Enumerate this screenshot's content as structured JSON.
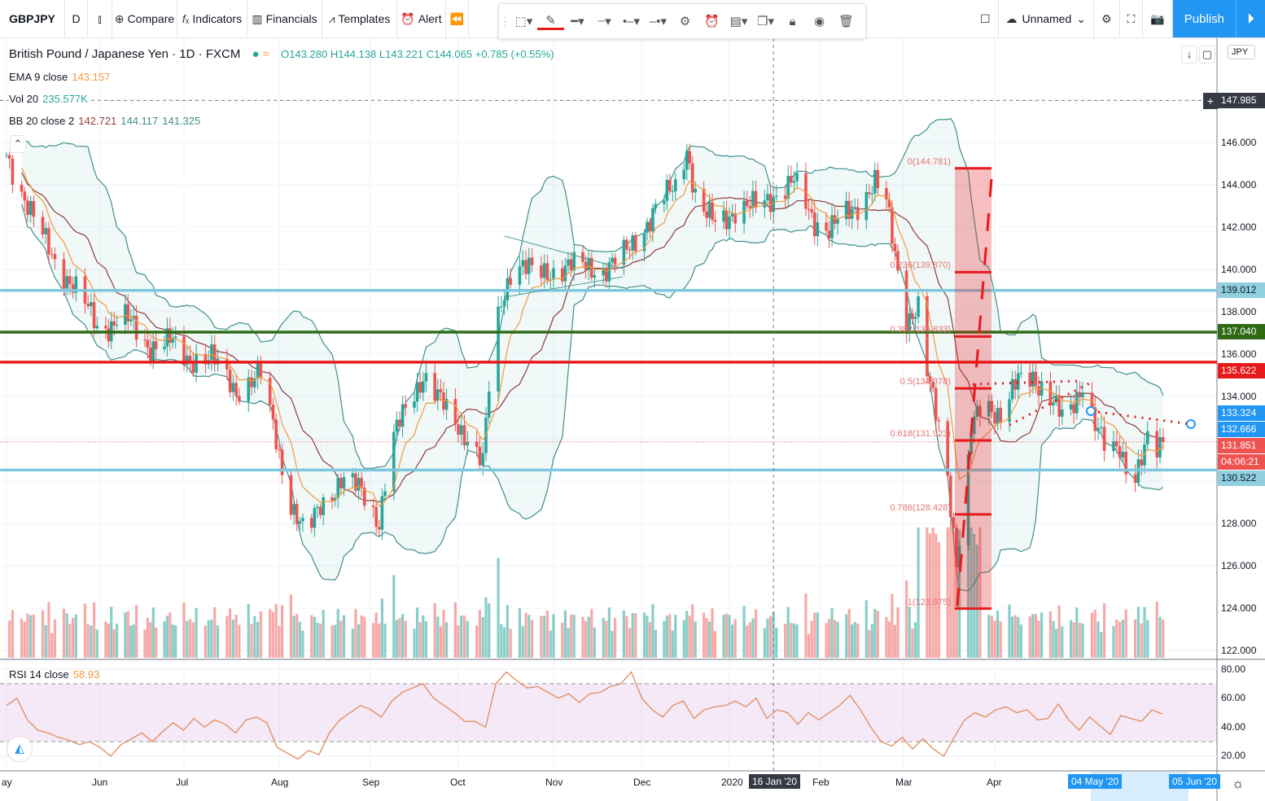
{
  "toolbar": {
    "symbol": "GBPJPY",
    "interval": "D",
    "chart_type_icon": "candles-icon",
    "compare": "Compare",
    "indicators": "Indicators",
    "financials": "Financials",
    "templates": "Templates",
    "alert": "Alert",
    "layout_name": "Unnamed",
    "publish": "Publish"
  },
  "legend": {
    "title": "British Pound / Japanese Yen · 1D · FXCM",
    "open": "O143.280",
    "high": "H144.138",
    "low": "L143.221",
    "close": "C144.065",
    "change": "+0.785 (+0.55%)",
    "ema": {
      "label": "EMA 9 close",
      "value": "143.157"
    },
    "vol": {
      "label": "Vol 20",
      "value": "235.577K"
    },
    "bb": {
      "label": "BB 20 close 2",
      "basis": "142.721",
      "upper": "144.117",
      "lower": "141.325"
    },
    "rsi": {
      "label": "RSI 14 close",
      "value": "58.93"
    }
  },
  "price_axis": {
    "currency": "JPY",
    "ticks": [
      "146.000",
      "144.000",
      "142.000",
      "140.000",
      "138.000",
      "136.000",
      "134.000",
      "128.000",
      "126.000",
      "124.000",
      "122.000"
    ],
    "labels": [
      {
        "text": "147.985",
        "bg": "#363a45",
        "fg": "#ffffff",
        "price": 147.985
      },
      {
        "text": "139.012",
        "bg": "#8fcfe0",
        "fg": "#131722",
        "price": 139.012
      },
      {
        "text": "137.040",
        "bg": "#2e6b14",
        "fg": "#ffffff",
        "price": 137.04
      },
      {
        "text": "135.622",
        "bg": "#e8191b",
        "fg": "#ffffff",
        "price": 135.622
      },
      {
        "text": "133.324",
        "bg": "#2196f3",
        "fg": "#ffffff",
        "price": 133.324
      },
      {
        "text": "132.666",
        "bg": "#2196f3",
        "fg": "#ffffff",
        "price": 132.666
      },
      {
        "text": "131.851",
        "bg": "#ef5350",
        "fg": "#ffffff",
        "price": 131.851
      },
      {
        "text": "04:06:21",
        "bg": "#ef5350",
        "fg": "#ffffff",
        "price": 131.05
      },
      {
        "text": "130.522",
        "bg": "#8fcfe0",
        "fg": "#131722",
        "price": 130.522
      }
    ]
  },
  "rsi_axis": {
    "ticks": [
      "80.00",
      "60.00",
      "40.00",
      "20.00"
    ],
    "upper_band": 70,
    "lower_band": 30
  },
  "time_axis": {
    "labels": [
      {
        "text": "ay",
        "date": "2019-05-01"
      },
      {
        "text": "Jun",
        "date": "2019-06-01"
      },
      {
        "text": "Jul",
        "date": "2019-07-01"
      },
      {
        "text": "Aug",
        "date": "2019-08-01"
      },
      {
        "text": "Sep",
        "date": "2019-09-01"
      },
      {
        "text": "Oct",
        "date": "2019-10-01"
      },
      {
        "text": "Nov",
        "date": "2019-11-01"
      },
      {
        "text": "Dec",
        "date": "2019-12-01"
      },
      {
        "text": "2020",
        "date": "2020-01-01"
      },
      {
        "text": "Feb",
        "date": "2020-02-01"
      },
      {
        "text": "Mar",
        "date": "2020-03-01"
      },
      {
        "text": "Apr",
        "date": "2020-04-01"
      }
    ],
    "crosshair_label": "16 Jan '20",
    "range_start_label": "04 May '20",
    "range_end_label": "05 Jun '20"
  },
  "horizontal_lines": [
    {
      "price": 139.012,
      "color": "#7ec8dd"
    },
    {
      "price": 137.04,
      "color": "#2e6b14"
    },
    {
      "price": 135.622,
      "color": "#e8191b"
    },
    {
      "price": 130.522,
      "color": "#7ec8dd"
    }
  ],
  "fibonacci": {
    "color": "#e8191b",
    "levels": [
      {
        "text": "0(144.781)",
        "price": 144.781
      },
      {
        "text": "0.236(139.870)",
        "price": 139.87
      },
      {
        "text": "0.382(136.833)",
        "price": 136.833
      },
      {
        "text": "0.5(134.378)",
        "price": 134.378
      },
      {
        "text": "0.618(131.923)",
        "price": 131.923
      },
      {
        "text": "0.786(128.428)",
        "price": 128.428
      },
      {
        "text": "1(123.975)",
        "price": 123.975
      }
    ]
  },
  "chart_data": {
    "type": "candlestick",
    "symbol": "GBPJPY",
    "ylim": [
      122,
      148
    ],
    "approx_closes": [
      [
        "2019-05-01",
        145.4
      ],
      [
        "2019-05-09",
        142.7
      ],
      [
        "2019-05-17",
        140.4
      ],
      [
        "2019-05-25",
        138.9
      ],
      [
        "2019-06-01",
        137.0
      ],
      [
        "2019-06-09",
        137.9
      ],
      [
        "2019-06-18",
        136.4
      ],
      [
        "2019-06-26",
        136.6
      ],
      [
        "2019-07-02",
        135.8
      ],
      [
        "2019-07-10",
        135.8
      ],
      [
        "2019-07-18",
        134.3
      ],
      [
        "2019-07-26",
        135.0
      ],
      [
        "2019-07-31",
        132.0
      ],
      [
        "2019-08-04",
        129.3
      ],
      [
        "2019-08-10",
        127.3
      ],
      [
        "2019-08-15",
        128.9
      ],
      [
        "2019-08-22",
        130.0
      ],
      [
        "2019-08-29",
        129.6
      ],
      [
        "2019-09-04",
        128.1
      ],
      [
        "2019-09-08",
        131.6
      ],
      [
        "2019-09-13",
        133.5
      ],
      [
        "2019-09-19",
        135.0
      ],
      [
        "2019-09-24",
        133.9
      ],
      [
        "2019-10-03",
        132.3
      ],
      [
        "2019-10-09",
        130.8
      ],
      [
        "2019-10-12",
        136.2
      ],
      [
        "2019-10-15",
        138.5
      ],
      [
        "2019-10-19",
        140.4
      ],
      [
        "2019-10-27",
        139.7
      ],
      [
        "2019-11-06",
        140.2
      ],
      [
        "2019-11-18",
        140.0
      ],
      [
        "2019-11-26",
        140.8
      ],
      [
        "2019-12-02",
        142.0
      ],
      [
        "2019-12-07",
        143.1
      ],
      [
        "2019-12-13",
        143.9
      ],
      [
        "2019-12-17",
        145.8
      ],
      [
        "2019-12-21",
        142.7
      ],
      [
        "2019-12-27",
        142.3
      ],
      [
        "2020-01-02",
        142.7
      ],
      [
        "2020-01-08",
        142.9
      ],
      [
        "2020-01-16",
        143.5
      ],
      [
        "2020-01-23",
        144.1
      ],
      [
        "2020-01-30",
        142.3
      ],
      [
        "2020-02-04",
        141.9
      ],
      [
        "2020-02-13",
        142.9
      ],
      [
        "2020-02-20",
        144.1
      ],
      [
        "2020-02-24",
        143.1
      ],
      [
        "2020-02-28",
        140.0
      ],
      [
        "2020-03-02",
        137.7
      ],
      [
        "2020-03-06",
        138.1
      ],
      [
        "2020-03-09",
        135.0
      ],
      [
        "2020-03-13",
        132.7
      ],
      [
        "2020-03-16",
        130.4
      ],
      [
        "2020-03-19",
        126.2
      ],
      [
        "2020-03-22",
        128.9
      ],
      [
        "2020-03-24",
        132.3
      ],
      [
        "2020-03-28",
        133.9
      ],
      [
        "2020-04-03",
        133.1
      ],
      [
        "2020-04-09",
        134.7
      ],
      [
        "2020-04-14",
        135.0
      ],
      [
        "2020-04-20",
        133.9
      ],
      [
        "2020-04-25",
        132.7
      ],
      [
        "2020-05-01",
        134.7
      ],
      [
        "2020-05-05",
        132.7
      ],
      [
        "2020-05-09",
        131.2
      ],
      [
        "2020-05-13",
        131.6
      ],
      [
        "2020-05-17",
        130.0
      ],
      [
        "2020-05-22",
        131.8
      ],
      [
        "2020-05-24",
        131.0
      ],
      [
        "2020-05-27",
        131.85
      ]
    ],
    "rsi": [
      55,
      60,
      45,
      38,
      36,
      33,
      31,
      28,
      30,
      26,
      20,
      28,
      32,
      36,
      30,
      37,
      43,
      38,
      46,
      40,
      45,
      42,
      36,
      45,
      47,
      43,
      26,
      22,
      18,
      24,
      21,
      36,
      45,
      50,
      55,
      52,
      47,
      58,
      64,
      67,
      70,
      60,
      55,
      50,
      44,
      44,
      40,
      70,
      78,
      72,
      67,
      68,
      64,
      60,
      63,
      57,
      63,
      64,
      68,
      70,
      78,
      60,
      52,
      47,
      55,
      58,
      46,
      52,
      54,
      55,
      58,
      54,
      60,
      46,
      52,
      50,
      42,
      50,
      45,
      50,
      55,
      62,
      52,
      40,
      30,
      27,
      33,
      25,
      32,
      25,
      20,
      33,
      45,
      50,
      47,
      52,
      54,
      50,
      52,
      45,
      46,
      56,
      45,
      38,
      47,
      41,
      35,
      48,
      46,
      44,
      52,
      49
    ],
    "colors": {
      "up": "#26a69a",
      "down": "#ef5350",
      "ema": "#f29a3c",
      "bb_basis": "#8e3b3b",
      "bb_band": "#3f8f8c",
      "rsi": "#e08a5a"
    }
  }
}
